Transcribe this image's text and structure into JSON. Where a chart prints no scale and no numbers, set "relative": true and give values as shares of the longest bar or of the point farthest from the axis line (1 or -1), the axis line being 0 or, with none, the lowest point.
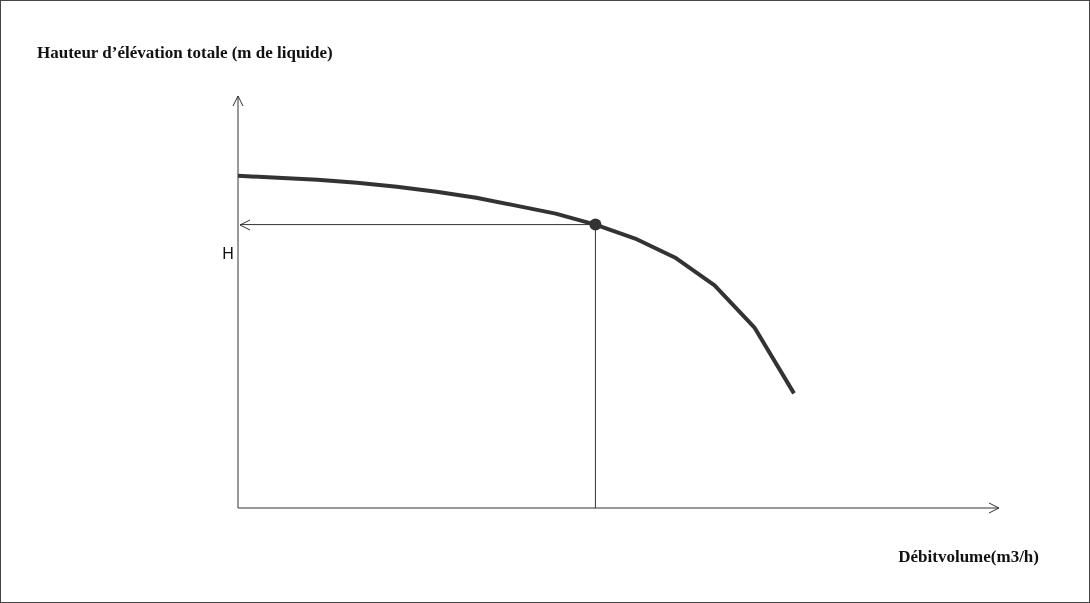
{
  "chart_data": {
    "type": "line",
    "relative": true,
    "marker": "none",
    "annotations": [
      "Hauteur d’élévation totale (m de liquide)",
      "Débitvolume(m3/h)"
    ],
    "categories": [
      null,
      null,
      null,
      null,
      null,
      null,
      null,
      null,
      null,
      null,
      null,
      null,
      null,
      null,
      null
    ],
    "ref_lines": [
      {
        "axis": "y",
        "value": 0.853,
        "label": "H",
        "color": "#333333"
      }
    ],
    "series": [
      {
        "color": "#333333",
        "values": [
          1,
          0.994,
          0.988,
          0.979,
          0.967,
          0.952,
          0.934,
          0.91,
          0.886,
          0.853,
          0.811,
          0.754,
          0.67,
          0.544,
          0.345
        ]
      }
    ]
  }
}
